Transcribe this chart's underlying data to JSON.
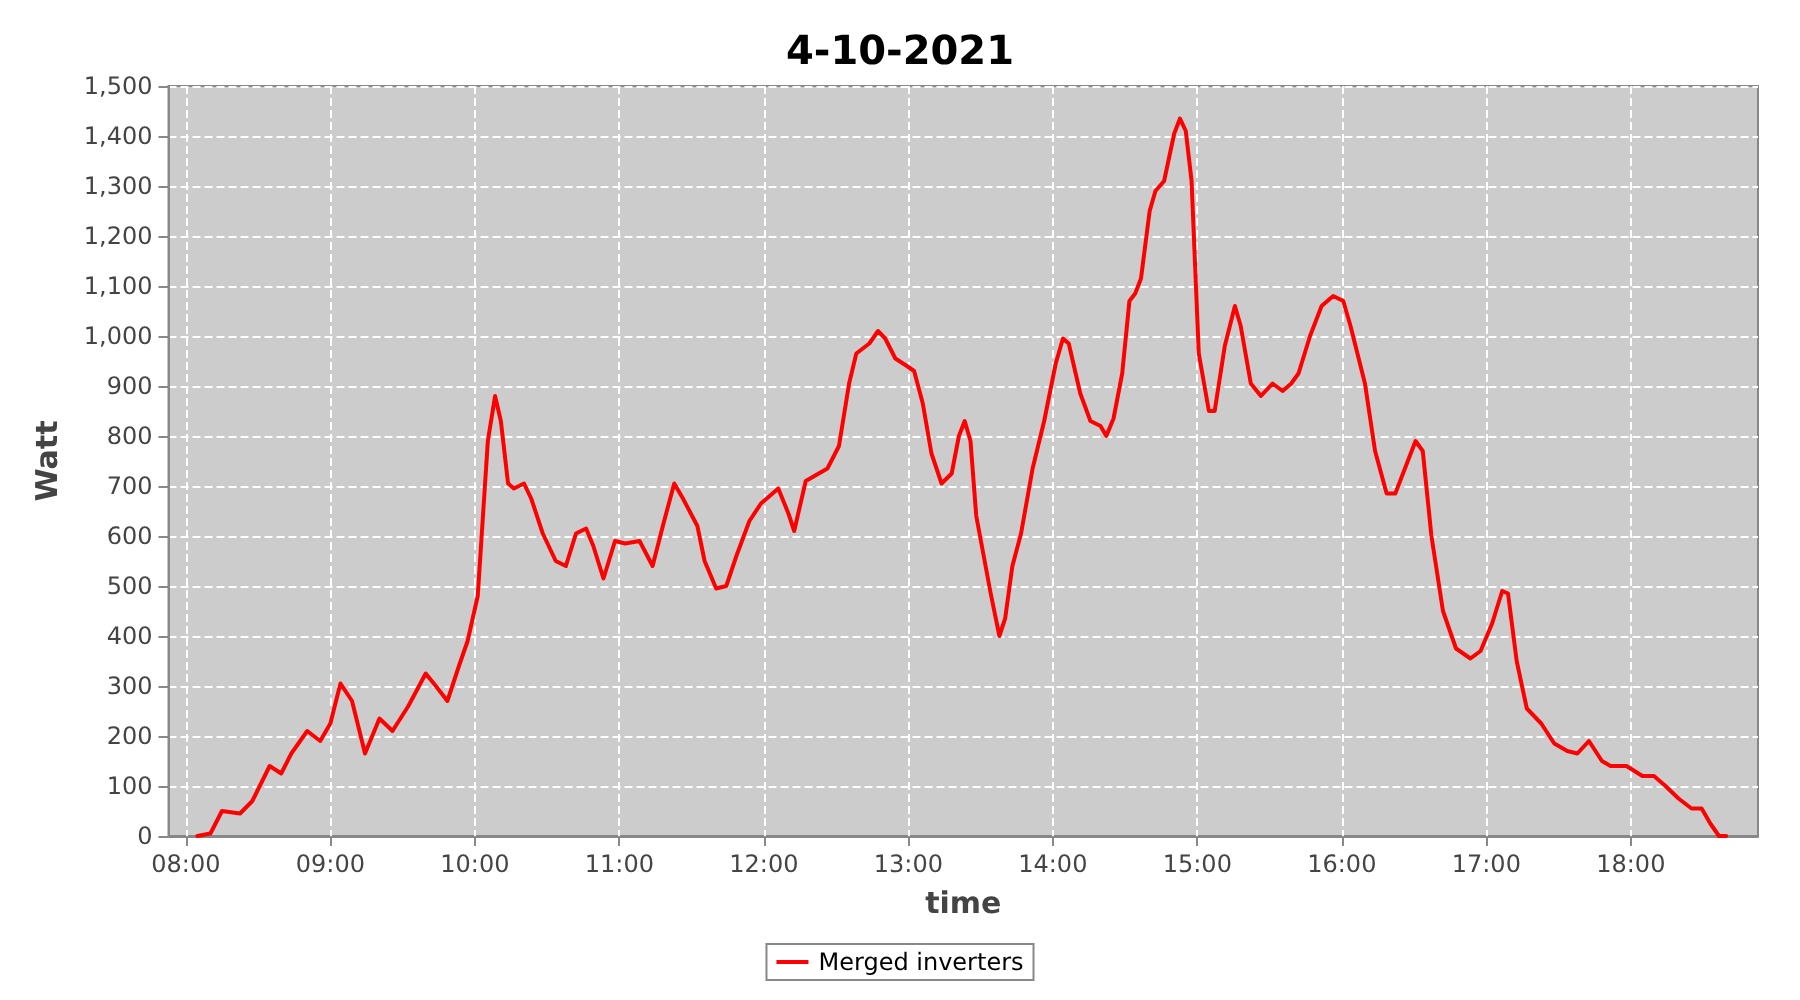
{
  "chart_data": {
    "type": "line",
    "title": "4-10-2021",
    "xlabel": "time",
    "ylabel": "Watt",
    "xlim": [
      7.88,
      18.88
    ],
    "xticks": [
      {
        "value": 8,
        "label": "08:00"
      },
      {
        "value": 9,
        "label": "09:00"
      },
      {
        "value": 10,
        "label": "10:00"
      },
      {
        "value": 11,
        "label": "11:00"
      },
      {
        "value": 12,
        "label": "12:00"
      },
      {
        "value": 13,
        "label": "13:00"
      },
      {
        "value": 14,
        "label": "14:00"
      },
      {
        "value": 15,
        "label": "15:00"
      },
      {
        "value": 16,
        "label": "16:00"
      },
      {
        "value": 17,
        "label": "17:00"
      },
      {
        "value": 18,
        "label": "18:00"
      }
    ],
    "ylim": [
      0,
      1500
    ],
    "yticks": [
      0,
      100,
      200,
      300,
      400,
      500,
      600,
      700,
      800,
      900,
      {
        "value": 1000,
        "label": "1,000"
      },
      {
        "value": 1100,
        "label": "1,100"
      },
      {
        "value": 1200,
        "label": "1,200"
      },
      {
        "value": 1300,
        "label": "1,300"
      },
      {
        "value": 1400,
        "label": "1,400"
      },
      {
        "value": 1500,
        "label": "1,500"
      }
    ],
    "grid": true,
    "legend": "bottom",
    "marker": "none",
    "line_style": "solid",
    "series": [
      {
        "name": "Merged inverters",
        "color": "#ff0000",
        "x": [
          8.08,
          8.17,
          8.25,
          8.375,
          8.46,
          8.58,
          8.66,
          8.73,
          8.84,
          8.93,
          9.0,
          9.07,
          9.15,
          9.24,
          9.34,
          9.43,
          9.54,
          9.66,
          9.73,
          9.81,
          9.89,
          9.95,
          10.02,
          10.09,
          10.14,
          10.18,
          10.23,
          10.27,
          10.34,
          10.39,
          10.47,
          10.56,
          10.63,
          10.7,
          10.77,
          10.82,
          10.89,
          10.97,
          11.04,
          11.14,
          11.23,
          11.31,
          11.38,
          11.44,
          11.54,
          11.59,
          11.67,
          11.74,
          11.81,
          11.9,
          11.98,
          12.1,
          12.17,
          12.21,
          12.29,
          12.35,
          12.44,
          12.52,
          12.59,
          12.64,
          12.73,
          12.79,
          12.84,
          12.91,
          12.99,
          13.04,
          13.1,
          13.16,
          13.23,
          13.3,
          13.35,
          13.39,
          13.43,
          13.47,
          13.57,
          13.63,
          13.67,
          13.72,
          13.78,
          13.86,
          13.94,
          14.02,
          14.07,
          14.11,
          14.19,
          14.26,
          14.33,
          14.37,
          14.42,
          14.48,
          14.53,
          14.57,
          14.61,
          14.67,
          14.71,
          14.77,
          14.84,
          14.88,
          14.92,
          14.96,
          15.01,
          15.08,
          15.12,
          15.19,
          15.26,
          15.3,
          15.37,
          15.44,
          15.52,
          15.59,
          15.65,
          15.7,
          15.78,
          15.86,
          15.94,
          16.01,
          16.06,
          16.16,
          16.23,
          16.31,
          16.37,
          16.45,
          16.51,
          16.56,
          16.62,
          16.7,
          16.79,
          16.89,
          16.96,
          17.04,
          17.11,
          17.15,
          17.21,
          17.28,
          17.38,
          17.47,
          17.56,
          17.63,
          17.71,
          17.8,
          17.86,
          17.97,
          18.08,
          18.16,
          18.24,
          18.33,
          18.42,
          18.49,
          18.55,
          18.61,
          18.66
        ],
        "values": [
          0,
          5,
          50,
          45,
          70,
          140,
          125,
          165,
          210,
          190,
          225,
          305,
          270,
          165,
          235,
          210,
          260,
          325,
          300,
          270,
          340,
          390,
          480,
          790,
          880,
          830,
          705,
          695,
          705,
          675,
          605,
          550,
          540,
          605,
          615,
          580,
          515,
          590,
          585,
          590,
          540,
          630,
          705,
          675,
          620,
          550,
          495,
          500,
          560,
          630,
          665,
          695,
          645,
          610,
          710,
          720,
          735,
          780,
          905,
          965,
          985,
          1010,
          995,
          955,
          940,
          930,
          865,
          765,
          705,
          725,
          800,
          830,
          790,
          640,
          485,
          400,
          435,
          540,
          605,
          735,
          830,
          945,
          995,
          985,
          885,
          830,
          820,
          800,
          835,
          925,
          1070,
          1085,
          1115,
          1250,
          1290,
          1310,
          1405,
          1435,
          1410,
          1310,
          965,
          850,
          850,
          980,
          1060,
          1020,
          905,
          880,
          905,
          890,
          905,
          925,
          1000,
          1060,
          1080,
          1070,
          1020,
          905,
          770,
          685,
          685,
          745,
          790,
          770,
          600,
          450,
          375,
          355,
          370,
          425,
          490,
          485,
          350,
          255,
          225,
          185,
          170,
          165,
          190,
          150,
          140,
          140,
          120,
          120,
          100,
          75,
          55,
          55,
          25,
          0,
          0
        ]
      }
    ]
  }
}
